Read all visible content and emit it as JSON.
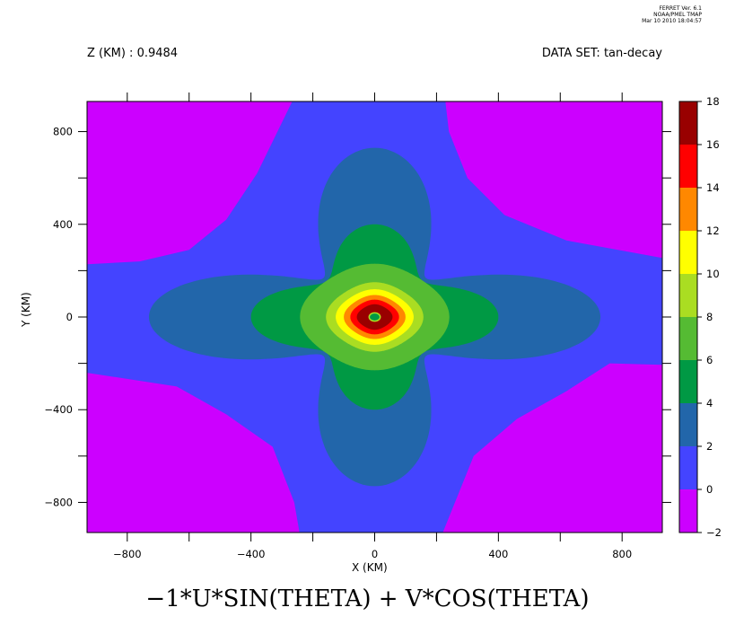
{
  "header": {
    "version_lines": [
      "FERRET Ver. 6.1",
      "NOAA/PMEL TMAP",
      "Mar 10 2010 18:04:57"
    ],
    "z_label": "Z (KM) : 0.9484",
    "dataset_label": "DATA SET: tan-decay"
  },
  "footer": {
    "title": "−1*U*SIN(THETA)  +  V*COS(THETA)"
  },
  "chart_data": {
    "type": "heatmap",
    "title": "−1*U*SIN(THETA)  +  V*COS(THETA)",
    "xlabel": "X (KM)",
    "ylabel": "Y (KM)",
    "xlim": [
      -930,
      930
    ],
    "ylim": [
      -930,
      930
    ],
    "x_ticks": [
      -800,
      -400,
      0,
      400,
      800
    ],
    "y_ticks": [
      800,
      400,
      0,
      -400,
      -800
    ],
    "colorbar": {
      "levels": [
        -2,
        0,
        2,
        4,
        6,
        8,
        10,
        12,
        14,
        16,
        18
      ],
      "tick_labels": [
        "18",
        "16",
        "14",
        "12",
        "10",
        "8",
        "6",
        "4",
        "2",
        "0",
        "-2"
      ],
      "colors": [
        "#cc00ff",
        "#4444ff",
        "#2266aa",
        "#009944",
        "#55bb33",
        "#aadd22",
        "#ffff00",
        "#ff8800",
        "#ff0000",
        "#990000"
      ]
    },
    "contours": [
      {
        "level": 0,
        "shape": "cross-pad",
        "extent": 930
      },
      {
        "level": 2,
        "x_half_width": 730,
        "y_half_width": 730,
        "core": 130
      },
      {
        "level": 4,
        "x_half_width": 400,
        "y_half_width": 400,
        "core": 160
      },
      {
        "level": 6,
        "radius": 230
      },
      {
        "level": 8,
        "radius": 150
      },
      {
        "level": 10,
        "radius": 120
      },
      {
        "level": 12,
        "radius": 95
      },
      {
        "level": 14,
        "radius": 75
      },
      {
        "level": 16,
        "radius": 55
      },
      {
        "level": 18,
        "radius": 18
      }
    ]
  }
}
